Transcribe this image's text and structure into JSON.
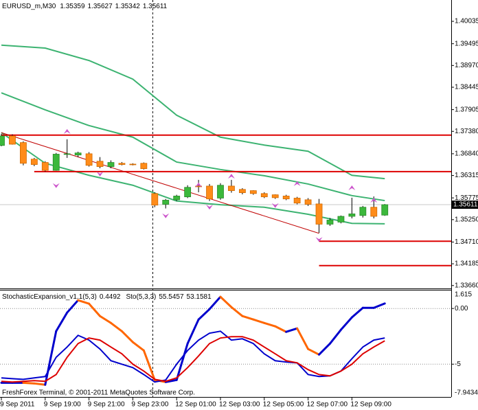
{
  "chart_data": [
    {
      "type": "candlestick",
      "symbol": "EURUSD_m,M30",
      "categories": [
        "9 Sep 2011",
        null,
        null,
        null,
        "9 Sep 19:00",
        null,
        null,
        null,
        "9 Sep 21:00",
        null,
        null,
        null,
        "9 Sep 23:00",
        null,
        null,
        null,
        "12 Sep 01:00",
        null,
        null,
        null,
        "12 Sep 03:00",
        null,
        null,
        null,
        "12 Sep 05:00",
        null,
        null,
        null,
        "12 Sep 07:00",
        null,
        null,
        null,
        "12 Sep 09:00",
        null,
        null,
        null
      ],
      "open": [
        1.3704,
        1.3727,
        1.3711,
        1.3671,
        1.3663,
        1.3644,
        1.3684,
        1.3681,
        1.3684,
        1.3666,
        1.3653,
        1.3661,
        1.3659,
        1.3661,
        1.3588,
        1.3562,
        1.3573,
        1.358,
        1.3606,
        1.3606,
        1.3577,
        1.3606,
        1.3598,
        1.3595,
        1.3588,
        1.3585,
        1.3582,
        1.3577,
        1.3573,
        1.3563,
        1.3514,
        1.3519,
        1.3533,
        1.3535,
        1.3555,
        1.35359
      ],
      "high": [
        1.3732,
        1.3731,
        1.3714,
        1.3674,
        1.3666,
        1.3686,
        1.3719,
        1.3689,
        1.3688,
        1.3676,
        1.3668,
        1.3664,
        1.3661,
        1.3663,
        1.3591,
        1.3575,
        1.3585,
        1.3608,
        1.3621,
        1.3611,
        1.3613,
        1.3621,
        1.3601,
        1.3596,
        1.3591,
        1.3586,
        1.3585,
        1.358,
        1.3577,
        1.3575,
        1.3529,
        1.3535,
        1.3578,
        1.3558,
        1.3581,
        1.35627
      ],
      "low": [
        1.3702,
        1.3706,
        1.3656,
        1.3654,
        1.3641,
        1.3643,
        1.3674,
        1.3676,
        1.3653,
        1.3649,
        1.3649,
        1.3656,
        1.3656,
        1.3646,
        1.3555,
        1.3552,
        1.357,
        1.3577,
        1.3591,
        1.357,
        1.3573,
        1.359,
        1.3586,
        1.3585,
        1.3577,
        1.3575,
        1.3572,
        1.3562,
        1.3558,
        1.3493,
        1.351,
        1.3516,
        1.3528,
        1.353,
        1.3528,
        1.35342
      ],
      "close": [
        1.3727,
        1.3707,
        1.3661,
        1.3658,
        1.3644,
        1.3683,
        1.3684,
        1.3686,
        1.3656,
        1.3653,
        1.3663,
        1.3658,
        1.3658,
        1.3648,
        1.356,
        1.3572,
        1.3582,
        1.3603,
        1.3605,
        1.3575,
        1.3608,
        1.3595,
        1.359,
        1.3588,
        1.358,
        1.3578,
        1.3575,
        1.3565,
        1.3562,
        1.3514,
        1.3524,
        1.3533,
        1.3539,
        1.3555,
        1.3533,
        1.35611
      ],
      "bull_color": "#3cb83c",
      "bear_color": "#ff8c1a",
      "bands": [
        {
          "color": "#3cb371",
          "x": [
            0,
            4,
            8,
            12,
            16,
            20,
            24,
            28,
            32,
            35
          ],
          "values": [
            1.3946,
            1.3939,
            1.3909,
            1.3864,
            1.3777,
            1.3724,
            1.3705,
            1.369,
            1.3632,
            1.3624
          ]
        },
        {
          "color": "#3cb371",
          "x": [
            0,
            4,
            8,
            12,
            16,
            20,
            24,
            28,
            32,
            35
          ],
          "values": [
            1.3831,
            1.379,
            1.3752,
            1.3724,
            1.3664,
            1.3646,
            1.3631,
            1.3611,
            1.3583,
            1.3571
          ]
        },
        {
          "color": "#3cb371",
          "x": [
            0,
            4,
            8,
            12,
            16,
            20,
            24,
            28,
            32,
            35
          ],
          "values": [
            1.3735,
            1.3661,
            1.3632,
            1.3608,
            1.357,
            1.3561,
            1.3555,
            1.3538,
            1.3516,
            1.3515
          ]
        }
      ],
      "levels": [
        {
          "value": 1.3729,
          "from": 0,
          "color": "#dd0000"
        },
        {
          "value": 1.3641,
          "from": 3,
          "color": "#dd0000"
        },
        {
          "value": 1.3473,
          "from": 29,
          "color": "#dd0000"
        },
        {
          "value": 1.3414,
          "from": 29,
          "color": "#dd0000"
        }
      ],
      "trendline": {
        "x": [
          0,
          29
        ],
        "values": [
          1.3735,
          1.3492
        ],
        "color": "#c00000"
      },
      "fractals_up": {
        "x": [
          6,
          18,
          21,
          27,
          32,
          34
        ],
        "values": [
          1.3737,
          1.3608,
          1.3629,
          1.3611,
          1.3601,
          1.3571
        ],
        "color": "#cc55cc"
      },
      "fractals_down": {
        "x": [
          5,
          9,
          15,
          19,
          25,
          29
        ],
        "values": [
          1.3608,
          1.3636,
          1.3535,
          1.3556,
          1.356,
          1.3478
        ],
        "color": "#cc55cc"
      },
      "ylim": [
        1.3359,
        1.4055
      ],
      "yticks": [
        1.40035,
        1.39495,
        {
          "value": 1.3897,
          "label": "1.38970"
        },
        1.38445,
        1.37905,
        {
          "value": 1.3738,
          "label": "1.37380"
        },
        {
          "value": 1.3684,
          "label": "1.36840"
        },
        1.36315,
        1.35775,
        {
          "value": 1.3525,
          "label": "1.35250"
        },
        {
          "value": 1.3471,
          "label": "1.34710"
        },
        1.34185,
        {
          "value": 1.3366,
          "label": "1.33660"
        }
      ]
    },
    {
      "type": "line",
      "title": "StochasticExpansion_v1.1(5,3)",
      "sto_label": "Sto(5,3,3)",
      "sto_values": [
        55.5457,
        53.1581
      ],
      "series": [
        {
          "up_color": "#0000cc",
          "down_color": "#ff6600",
          "values": [
            -6.67,
            -6.67,
            -6.67,
            -6.73,
            -6.85,
            -2.04,
            -0.37,
            0.74,
            0.43,
            -0.68,
            -1.3,
            -2.04,
            -3.02,
            -3.77,
            -6.42,
            -6.6,
            -6.42,
            -3.15,
            -0.99,
            -0.06,
            1.05,
            0.12,
            -0.68,
            -0.99,
            -1.3,
            -1.6,
            -2.1,
            -1.79,
            -3.64,
            -4.14,
            -3.15,
            -1.91,
            -0.8,
            0.06,
            0.06,
            0.4492
          ]
        },
        {
          "color": "#0000cc",
          "values": [
            -6.23,
            -6.3,
            -6.36,
            -6.23,
            -6.11,
            -4.38,
            -3.46,
            -2.41,
            -2.84,
            -3.64,
            -4.69,
            -5.0,
            -5.31,
            -5.93,
            -6.6,
            -6.42,
            -5.0,
            -3.77,
            -2.84,
            -2.22,
            -2.04,
            -2.84,
            -2.72,
            -3.15,
            -4.07,
            -4.69,
            -4.81,
            -4.88,
            -5.93,
            -6.11,
            -6.05,
            -5.62,
            -4.51,
            -3.46,
            -2.84,
            -2.65
          ]
        },
        {
          "color": "#dd0000",
          "values": [
            -6.54,
            -6.6,
            -6.54,
            -6.48,
            -6.54,
            -5.93,
            -4.38,
            -3.15,
            -2.65,
            -2.84,
            -3.46,
            -4.07,
            -5.0,
            -5.62,
            -6.36,
            -6.54,
            -6.23,
            -5.31,
            -4.26,
            -3.15,
            -2.65,
            -2.53,
            -2.53,
            -2.84,
            -3.46,
            -4.07,
            -4.69,
            -4.88,
            -5.49,
            -5.93,
            -6.05,
            -5.62,
            -5.0,
            -4.07,
            -3.46,
            -2.9
          ]
        }
      ],
      "ylim": [
        -7.9434,
        1.615
      ],
      "yticks": [
        1.615,
        {
          "value": 0,
          "label": "0.00"
        },
        -5,
        -7.9434
      ]
    }
  ],
  "footer": "FreshForex Terminal, © 2001-2011 MetaQuotes Software Corp."
}
